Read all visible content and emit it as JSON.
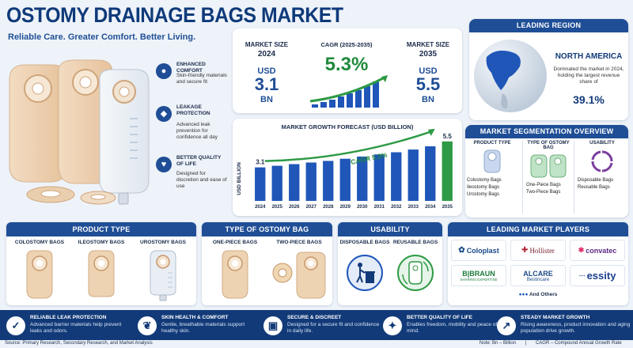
{
  "header": {
    "title": "OSTOMY DRAINAGE BAGS MARKET",
    "tagline": "Reliable Care. Greater Comfort. Better Living."
  },
  "features": [
    {
      "title": "ENHANCED COMFORT",
      "desc": "Skin-friendly materials and secure fit",
      "icon": "person-icon"
    },
    {
      "title": "LEAKAGE PROTECTION",
      "desc": "Advanced leak prevention for confidence all day",
      "icon": "drop-shield-icon"
    },
    {
      "title": "BETTER QUALITY OF LIFE",
      "desc": "Designed for discretion and ease of use",
      "icon": "hand-heart-icon"
    }
  ],
  "kpi": {
    "size_2024_label": "MARKET SIZE",
    "size_2024_year": "2024",
    "size_2024_unit": "USD",
    "size_2024_value": "3.1",
    "size_2024_scale": "BN",
    "cagr_label": "CAGR (2025-2035)",
    "cagr_value": "5.3%",
    "size_2035_label": "MARKET SIZE",
    "size_2035_year": "2035",
    "size_2035_unit": "USD",
    "size_2035_value": "5.5",
    "size_2035_scale": "BN"
  },
  "region": {
    "header": "LEADING REGION",
    "name": "NORTH AMERICA",
    "desc": "Dominated the market in 2024, holding the largest revenue share of",
    "share": "39.1%"
  },
  "chart_data": {
    "type": "bar",
    "title": "MARKET GROWTH FORECAST (USD BILLION)",
    "ylabel": "USD BILLION",
    "xlabel": "",
    "categories": [
      "2024",
      "2025",
      "2026",
      "2027",
      "2028",
      "2029",
      "2030",
      "2031",
      "2032",
      "2033",
      "2034",
      "2035"
    ],
    "values": [
      3.1,
      3.25,
      3.4,
      3.55,
      3.7,
      3.9,
      4.1,
      4.3,
      4.5,
      4.75,
      5.05,
      5.5
    ],
    "ylim": [
      0,
      6
    ],
    "annotations": {
      "first_label": "3.1",
      "last_label": "5.5",
      "trend_label": "CAGR 5.3%"
    },
    "colors": {
      "bar": "#1f56b8",
      "last_bar": "#2e9a45"
    }
  },
  "segmentation": {
    "header": "MARKET SEGMENTATION OVERVIEW",
    "columns": [
      {
        "title": "PRODUCT TYPE",
        "items": [
          "Colostomy Bags",
          "Ileostomy Bags",
          "Urostomy Bags"
        ]
      },
      {
        "title": "TYPE OF OSTOMY BAG",
        "items": [
          "One-Piece Bags",
          "Two-Piece Bags"
        ]
      },
      {
        "title": "USABILITY",
        "items": [
          "Disposable Bags",
          "Reusable Bags"
        ]
      }
    ]
  },
  "product_type": {
    "header": "PRODUCT TYPE",
    "items": [
      "COLOSTOMY BAGS",
      "ILEOSTOMY BAGS",
      "UROSTOMY BAGS"
    ]
  },
  "bag_type": {
    "header": "TYPE OF OSTOMY BAG",
    "items": [
      "ONE-PIECE BAGS",
      "TWO-PIECE BAGS"
    ]
  },
  "usability": {
    "header": "USABILITY",
    "items": [
      "DISPOSABLE BAGS",
      "REUSABLE BAGS"
    ]
  },
  "players": {
    "header": "LEADING MARKET PLAYERS",
    "logos": [
      "Coloplast",
      "Hollister",
      "convatec",
      "B|BRAUN",
      "SHARING EXPERTISE",
      "ALCARE",
      "Bestincare",
      "essity"
    ],
    "more": "And Others"
  },
  "benefits": [
    {
      "title": "RELIABLE LEAK PROTECTION",
      "desc": "Advanced barrier materials help prevent leaks and odors.",
      "icon": "shield-check-icon"
    },
    {
      "title": "SKIN HEALTH & COMFORT",
      "desc": "Gentle, breathable materials support healthy skin.",
      "icon": "feather-icon"
    },
    {
      "title": "SECURE & DISCREET",
      "desc": "Designed for a secure fit and confidence in daily life.",
      "icon": "lock-icon"
    },
    {
      "title": "BETTER QUALITY OF LIFE",
      "desc": "Enables freedom, mobility and peace of mind.",
      "icon": "person-freedom-icon"
    },
    {
      "title": "STEADY MARKET GROWTH",
      "desc": "Rising awareness, product innovation and aging population drive growth.",
      "icon": "growth-chart-icon"
    }
  ],
  "footer": {
    "source": "Source: Primary Research, Secondary Research, and Market Analysis",
    "note": "Note: Bn – Billion",
    "cagr_note": "CAGR – Compound Annual Growth Rate"
  }
}
